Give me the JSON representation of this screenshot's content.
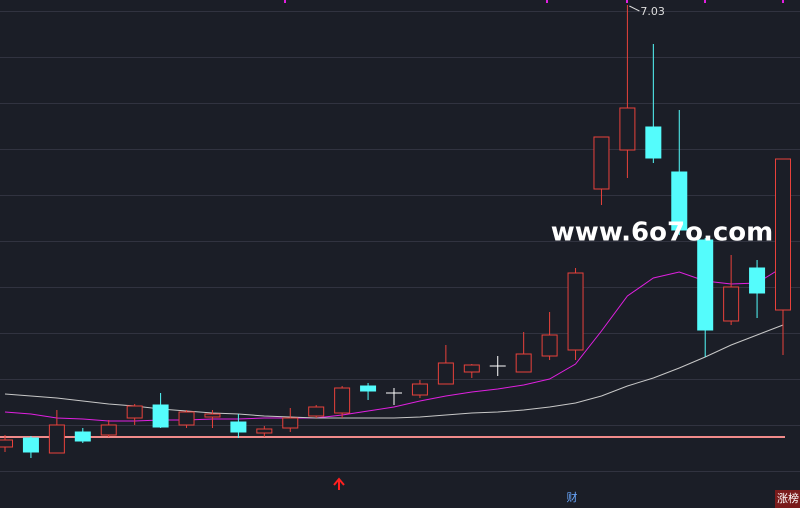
{
  "chart_data": {
    "type": "candlestick",
    "open": [
      2.61,
      2.7,
      2.55,
      2.76,
      2.73,
      2.9,
      3.03,
      2.83,
      2.91,
      2.86,
      2.75,
      2.8,
      2.92,
      2.95,
      3.22,
      3.15,
      3.13,
      3.24,
      3.36,
      3.42,
      3.36,
      3.52,
      3.58,
      5.19,
      5.58,
      5.81,
      5.36,
      4.68,
      3.87,
      4.4,
      3.98
    ],
    "high": [
      2.73,
      2.72,
      2.98,
      2.8,
      2.88,
      3.04,
      3.15,
      2.98,
      2.98,
      2.94,
      2.82,
      3.0,
      3.03,
      3.22,
      3.25,
      3.2,
      3.28,
      3.63,
      3.44,
      3.52,
      3.76,
      3.96,
      4.4,
      5.71,
      7.03,
      6.64,
      5.98,
      4.7,
      4.53,
      4.48,
      5.49
    ],
    "low": [
      2.56,
      2.5,
      2.55,
      2.65,
      2.71,
      2.83,
      2.8,
      2.8,
      2.8,
      2.7,
      2.71,
      2.76,
      2.9,
      2.9,
      3.08,
      3.03,
      3.1,
      3.24,
      3.3,
      3.32,
      3.36,
      3.48,
      3.48,
      5.03,
      5.3,
      5.45,
      4.73,
      3.51,
      3.83,
      3.9,
      3.53
    ],
    "close": [
      2.68,
      2.56,
      2.83,
      2.67,
      2.83,
      3.02,
      2.81,
      2.96,
      2.94,
      2.76,
      2.79,
      2.9,
      3.01,
      3.2,
      3.17,
      3.15,
      3.24,
      3.45,
      3.43,
      3.42,
      3.54,
      3.73,
      4.35,
      5.71,
      6.0,
      5.5,
      4.78,
      3.78,
      4.21,
      4.15,
      5.49
    ],
    "up_color": "#e8413b",
    "down_color": "#54fcfc",
    "doji_color": "#ffffff",
    "moving_averages": [
      {
        "color": "#e020e0",
        "values": [
          2.96,
          2.94,
          2.9,
          2.89,
          2.87,
          2.87,
          2.88,
          2.88,
          2.89,
          2.89,
          2.9,
          2.9,
          2.9,
          2.93,
          2.97,
          3.01,
          3.07,
          3.12,
          3.16,
          3.19,
          3.23,
          3.29,
          3.44,
          3.77,
          4.12,
          4.3,
          4.36,
          4.27,
          4.24,
          4.25,
          4.41
        ]
      },
      {
        "color": "#c8c8c8",
        "values": [
          3.14,
          3.12,
          3.1,
          3.07,
          3.04,
          3.02,
          2.99,
          2.97,
          2.95,
          2.94,
          2.92,
          2.91,
          2.9,
          2.9,
          2.9,
          2.9,
          2.91,
          2.93,
          2.95,
          2.96,
          2.98,
          3.01,
          3.05,
          3.12,
          3.22,
          3.3,
          3.4,
          3.51,
          3.63,
          3.73,
          3.83
        ]
      }
    ],
    "reference_line": 2.71,
    "reference_color": "#f08a8a",
    "ylim": [
      2.0,
      7.08
    ],
    "watermark": "www.6o7o.com",
    "event_label": "财",
    "badge": "涨榜"
  }
}
